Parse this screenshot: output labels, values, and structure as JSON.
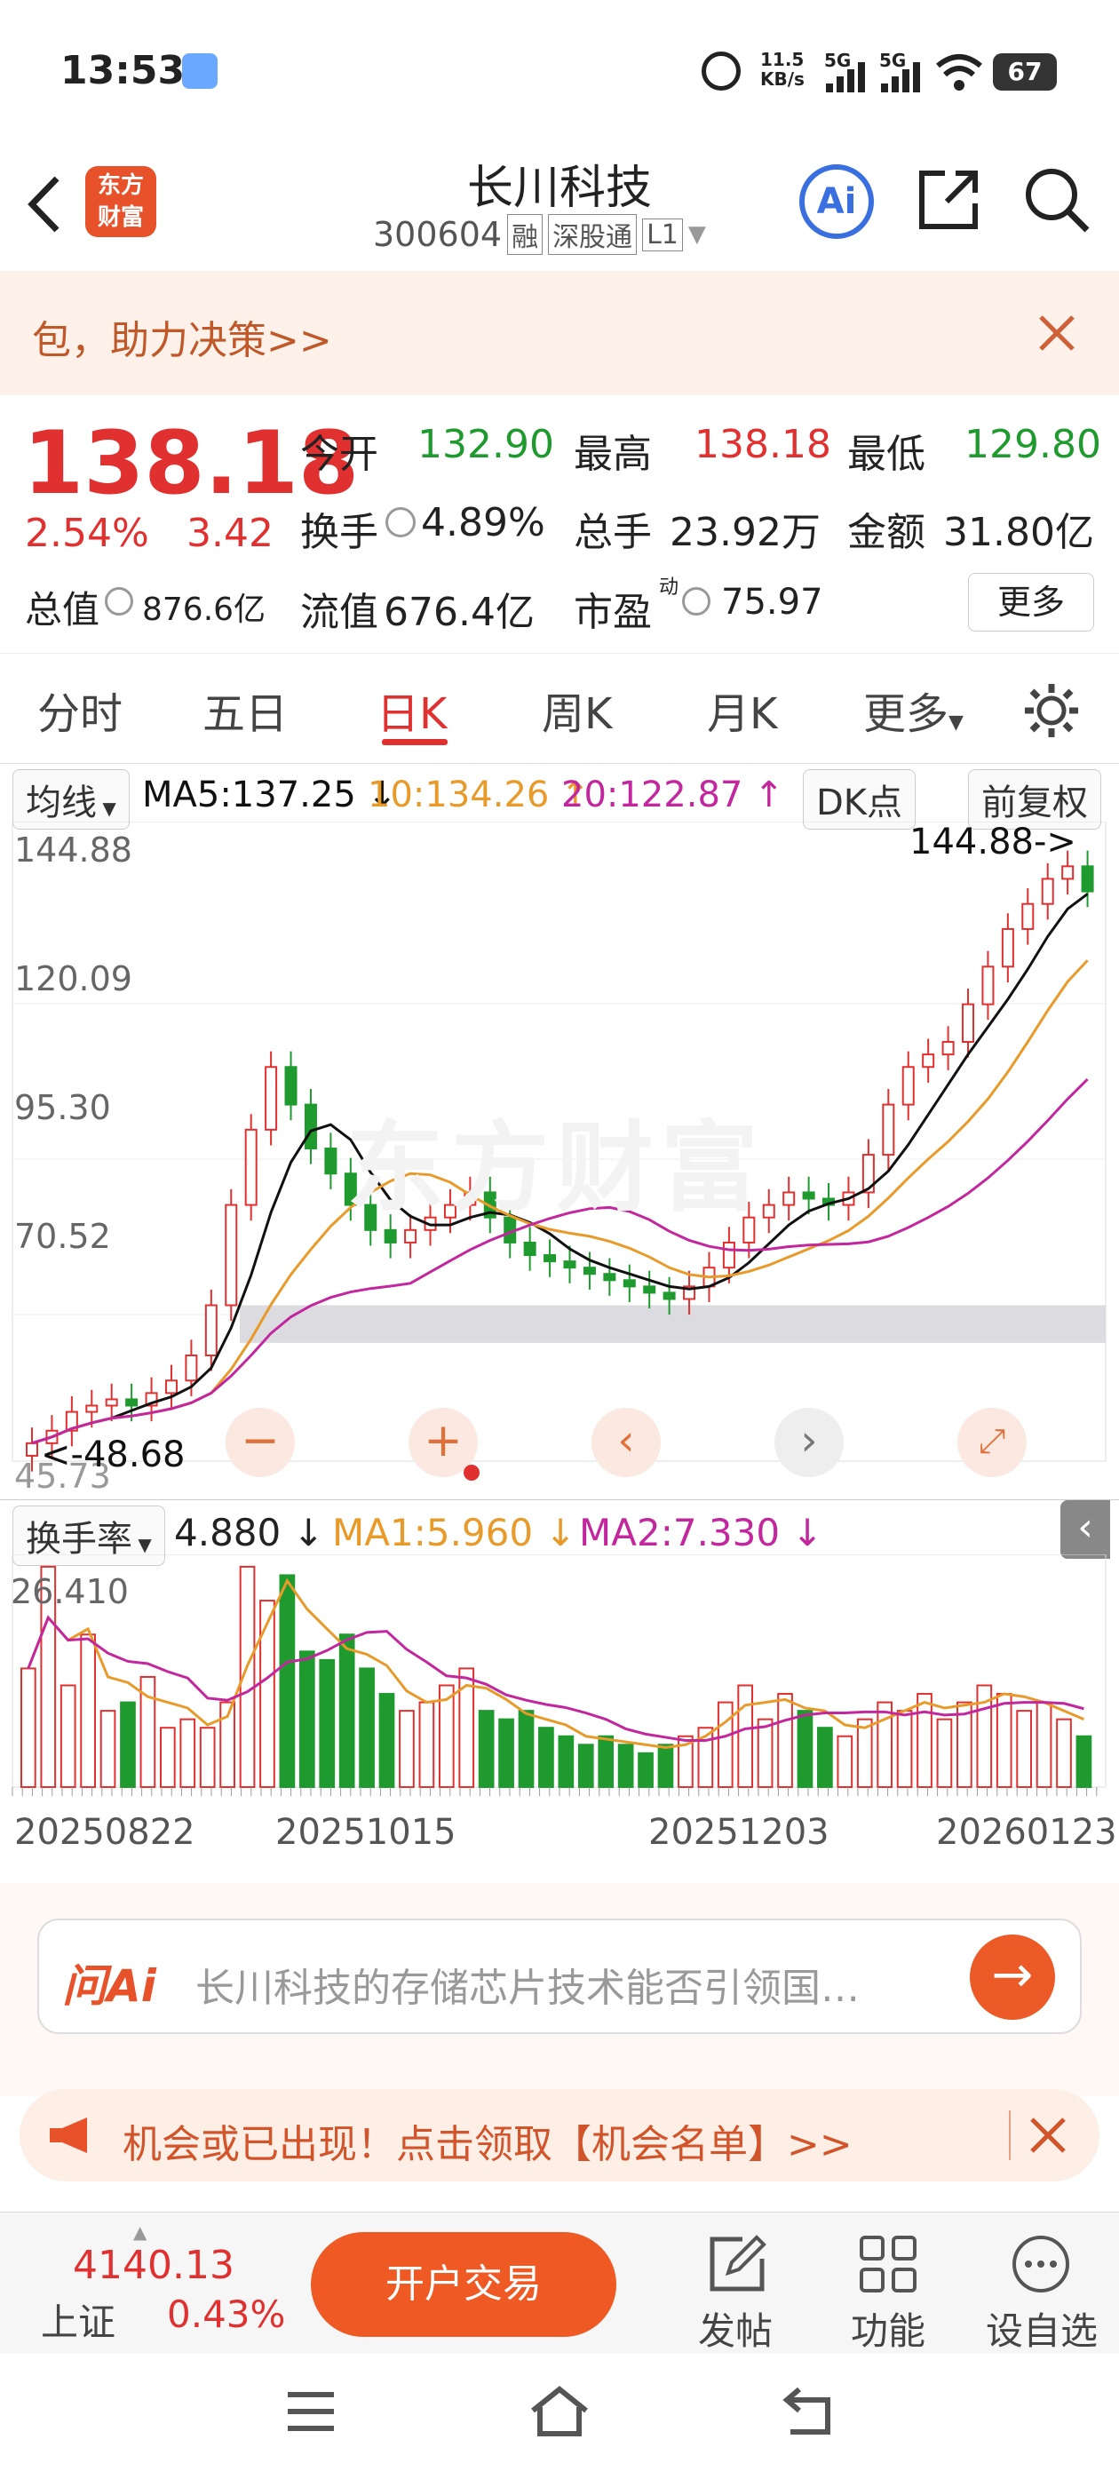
{
  "status": {
    "time": "13:53",
    "net_speed": "11.5\nKB/s",
    "signal1": "5G",
    "signal2": "5G",
    "battery": "67"
  },
  "header": {
    "title": "长川科技",
    "code": "300604",
    "tags": [
      "融",
      "深股通",
      "L1"
    ],
    "ai_label": "Ai"
  },
  "banner": {
    "text": "包，助力决策>>"
  },
  "quote": {
    "price": "138.18",
    "pct": "2.54%",
    "chg": "3.42",
    "open_label": "今开",
    "open": "132.90",
    "high_label": "最高",
    "high": "138.18",
    "low_label": "最低",
    "low": "129.80",
    "turnover_label": "换手",
    "turnover": "4.89%",
    "volume_label": "总手",
    "volume": "23.92万",
    "amount_label": "金额",
    "amount": "31.80亿",
    "mcap_label": "总值",
    "mcap": "876.6亿",
    "float_label": "流值",
    "float": "676.4亿",
    "pe_label": "市盈",
    "pe_sup": "动",
    "pe": "75.97",
    "more": "更多"
  },
  "tabs": [
    "分时",
    "五日",
    "日K",
    "周K",
    "月K",
    "更多"
  ],
  "indicators": {
    "ma_label": "均线",
    "ma5": "MA5:137.25",
    "ma10": "10:134.26",
    "ma20": "20:122.87",
    "dk": "DK点",
    "adjust": "前复权",
    "vol_label": "换手率",
    "vol_val": "4.880",
    "vol_ma1": "MA1:5.960",
    "vol_ma2": "MA2:7.330"
  },
  "chart_data": {
    "type": "candlestick",
    "price_axis": {
      "ticks": [
        "144.88",
        "120.09",
        "95.30",
        "70.52",
        "45.73"
      ],
      "max": 144.88,
      "min": 45.73
    },
    "annotations": {
      "high_mark": "144.88",
      "low_mark": "48.68"
    },
    "watermark": "东方财富",
    "dates": [
      "20250822",
      "20251015",
      "20251203",
      "20260123"
    ],
    "close_series": [
      50,
      52,
      55,
      56,
      57,
      56,
      58,
      60,
      64,
      72,
      88,
      100,
      110,
      104,
      97,
      93,
      88,
      84,
      82,
      84,
      86,
      88,
      90,
      86,
      82,
      80,
      79,
      78,
      77,
      76,
      75,
      74,
      73,
      75,
      78,
      82,
      86,
      88,
      90,
      89,
      88,
      90,
      96,
      104,
      110,
      112,
      114,
      120,
      126,
      132,
      136,
      140,
      142,
      138
    ],
    "volume_axis_top": "26.410",
    "volume_series": [
      14,
      26,
      12,
      18,
      9,
      10,
      13,
      7,
      8,
      7,
      10,
      26,
      22,
      25,
      16,
      15,
      18,
      14,
      11,
      9,
      10,
      12,
      14,
      9,
      8,
      9,
      7,
      6,
      5,
      6,
      5,
      4,
      5,
      6,
      7,
      10,
      12,
      8,
      11,
      9,
      7,
      6,
      8,
      10,
      9,
      11,
      8,
      10,
      12,
      11,
      9,
      10,
      8,
      6
    ],
    "colors": {
      "ma5": "#111111",
      "ma10": "#e89a2a",
      "ma20": "#c2279e",
      "up": "#e0302f",
      "down": "#1f9a2e"
    }
  },
  "ask": {
    "logo": "问Ai",
    "placeholder": "长川科技的存储芯片技术能否引领国…"
  },
  "promo": {
    "text": "机会或已出现！点击领取【机会名单】>>"
  },
  "bottom": {
    "index_val": "4140.13",
    "index_name": "上证",
    "index_pct": "0.43%",
    "trade": "开户交易",
    "post": "发帖",
    "func": "功能",
    "watch": "设自选"
  }
}
